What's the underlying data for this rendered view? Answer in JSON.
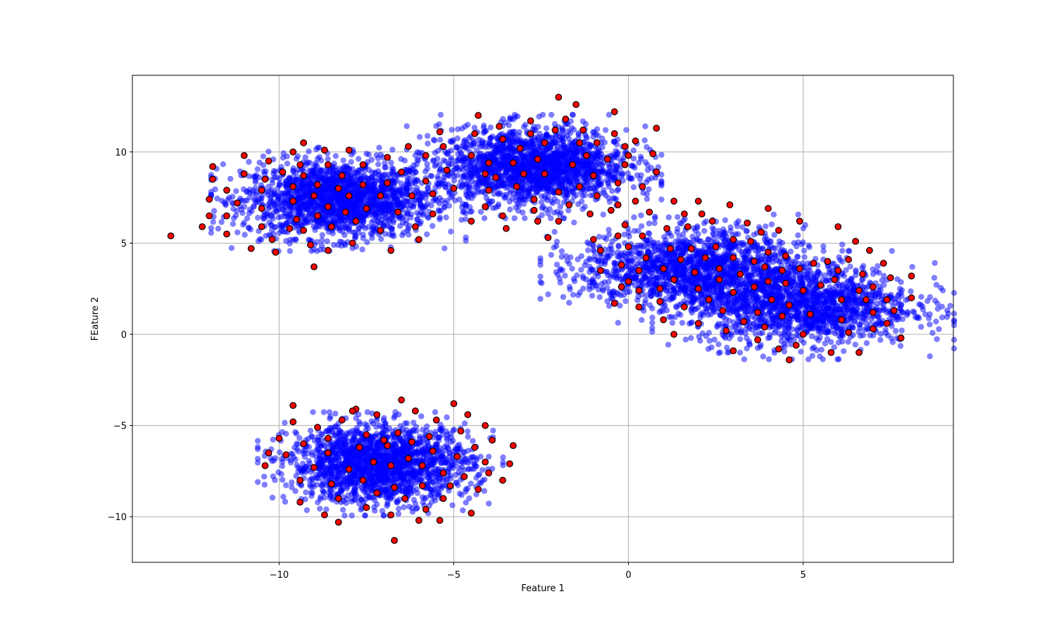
{
  "chart_data": {
    "type": "scatter",
    "title": "",
    "xlabel": "Feature 1",
    "ylabel": "FEature 2",
    "xlim": [
      -14.2,
      9.3
    ],
    "ylim": [
      -12.5,
      14.2
    ],
    "xticks": [
      -10,
      -5,
      0,
      5
    ],
    "xtick_labels": [
      "−10",
      "−5",
      "0",
      "5"
    ],
    "yticks": [
      -10,
      -5,
      0,
      5,
      10
    ],
    "ytick_labels": [
      "−10",
      "−5",
      "0",
      "5",
      "10"
    ],
    "grid": true,
    "legend": "none",
    "colors": {
      "dense": "#0000ff",
      "sparse_fill": "#ff0000",
      "sparse_edge": "#000000"
    },
    "series": [
      {
        "kind": "dense-clusters",
        "color": "#0000ff",
        "clusters": [
          {
            "center": [
              -8.3,
              7.4
            ],
            "spread": [
              1.35,
              1.05
            ],
            "count": 1800
          },
          {
            "center": [
              -2.7,
              9.2
            ],
            "spread": [
              1.35,
              1.05
            ],
            "count": 1800
          },
          {
            "center": [
              -7.1,
              -7.1
            ],
            "spread": [
              1.3,
              1.05
            ],
            "count": 1800
          },
          {
            "center": [
              1.8,
              3.6
            ],
            "spread": [
              1.6,
              1.1
            ],
            "count": 1500
          },
          {
            "center": [
              5.0,
              1.6
            ],
            "spread": [
              1.6,
              1.1
            ],
            "count": 1500
          }
        ]
      },
      {
        "kind": "highlighted",
        "color": "#ff0000",
        "points": [
          [
            -13.1,
            5.4
          ],
          [
            -12.2,
            5.9
          ],
          [
            -12.0,
            6.5
          ],
          [
            -12.0,
            7.4
          ],
          [
            -11.9,
            8.5
          ],
          [
            -11.9,
            9.2
          ],
          [
            -11.5,
            7.9
          ],
          [
            -11.5,
            6.5
          ],
          [
            -11.5,
            5.5
          ],
          [
            -11.2,
            7.2
          ],
          [
            -11.0,
            9.8
          ],
          [
            -11.0,
            8.8
          ],
          [
            -10.8,
            4.7
          ],
          [
            -10.5,
            7.9
          ],
          [
            -10.5,
            6.9
          ],
          [
            -10.5,
            5.9
          ],
          [
            -10.4,
            8.5
          ],
          [
            -10.3,
            9.5
          ],
          [
            -10.2,
            5.2
          ],
          [
            -10.1,
            4.5
          ],
          [
            -9.9,
            8.9
          ],
          [
            -9.7,
            5.8
          ],
          [
            -9.6,
            10.0
          ],
          [
            -9.6,
            8.1
          ],
          [
            -9.6,
            7.3
          ],
          [
            -9.5,
            6.3
          ],
          [
            -9.4,
            9.3
          ],
          [
            -9.3,
            10.5
          ],
          [
            -9.3,
            8.7
          ],
          [
            -9.3,
            5.7
          ],
          [
            -9.1,
            4.9
          ],
          [
            -9.0,
            7.6
          ],
          [
            -9.0,
            3.7
          ],
          [
            -8.9,
            8.2
          ],
          [
            -8.9,
            6.5
          ],
          [
            -8.7,
            10.1
          ],
          [
            -8.6,
            9.3
          ],
          [
            -8.6,
            7.0
          ],
          [
            -8.6,
            4.6
          ],
          [
            -8.5,
            5.9
          ],
          [
            -8.3,
            8.0
          ],
          [
            -8.2,
            8.7
          ],
          [
            -8.1,
            6.7
          ],
          [
            -8.0,
            10.1
          ],
          [
            -8.0,
            7.6
          ],
          [
            -7.9,
            5.0
          ],
          [
            -7.8,
            6.2
          ],
          [
            -7.6,
            9.3
          ],
          [
            -7.6,
            8.2
          ],
          [
            -7.5,
            6.9
          ],
          [
            -7.1,
            5.7
          ],
          [
            -7.1,
            7.6
          ],
          [
            -6.9,
            9.7
          ],
          [
            -6.9,
            8.3
          ],
          [
            -6.8,
            4.6
          ],
          [
            -6.6,
            6.7
          ],
          [
            -6.5,
            8.9
          ],
          [
            -6.3,
            10.3
          ],
          [
            -6.2,
            7.6
          ],
          [
            -6.1,
            5.9
          ],
          [
            -6.0,
            5.2
          ],
          [
            -5.8,
            9.8
          ],
          [
            -5.8,
            8.4
          ],
          [
            -5.6,
            7.7
          ],
          [
            -5.6,
            6.6
          ],
          [
            -5.4,
            11.1
          ],
          [
            -5.3,
            10.3
          ],
          [
            -5.2,
            9.0
          ],
          [
            -5.0,
            8.0
          ],
          [
            -4.5,
            9.8
          ],
          [
            -4.5,
            6.2
          ],
          [
            -4.4,
            11.0
          ],
          [
            -4.3,
            12.0
          ],
          [
            -4.1,
            8.8
          ],
          [
            -4.1,
            7.0
          ],
          [
            -4.0,
            9.4
          ],
          [
            -4.0,
            7.9
          ],
          [
            -3.8,
            8.6
          ],
          [
            -3.7,
            11.4
          ],
          [
            -3.6,
            10.7
          ],
          [
            -3.6,
            6.5
          ],
          [
            -3.5,
            5.8
          ],
          [
            -3.3,
            9.4
          ],
          [
            -3.2,
            8.1
          ],
          [
            -3.1,
            10.2
          ],
          [
            -3.0,
            8.8
          ],
          [
            -2.8,
            11.0
          ],
          [
            -2.8,
            11.7
          ],
          [
            -2.7,
            7.4
          ],
          [
            -2.7,
            6.8
          ],
          [
            -2.6,
            6.2
          ],
          [
            -2.6,
            9.6
          ],
          [
            -2.4,
            10.5
          ],
          [
            -2.4,
            8.8
          ],
          [
            -2.3,
            5.3
          ],
          [
            -2.1,
            11.2
          ],
          [
            -2.0,
            13.0
          ],
          [
            -2.0,
            7.8
          ],
          [
            -2.0,
            6.2
          ],
          [
            -1.8,
            11.8
          ],
          [
            -1.7,
            7.1
          ],
          [
            -1.6,
            9.3
          ],
          [
            -1.5,
            12.6
          ],
          [
            -1.4,
            10.5
          ],
          [
            -1.4,
            8.1
          ],
          [
            -1.3,
            11.2
          ],
          [
            -1.2,
            9.8
          ],
          [
            -1.1,
            6.6
          ],
          [
            -1.0,
            8.7
          ],
          [
            -1.0,
            5.2
          ],
          [
            -0.9,
            10.5
          ],
          [
            -0.9,
            7.6
          ],
          [
            -0.8,
            4.6
          ],
          [
            -0.8,
            3.5
          ],
          [
            -0.6,
            9.6
          ],
          [
            -0.5,
            6.8
          ],
          [
            -0.4,
            12.2
          ],
          [
            -0.4,
            11.0
          ],
          [
            -0.4,
            1.7
          ],
          [
            -0.3,
            8.3
          ],
          [
            -0.3,
            7.1
          ],
          [
            -0.3,
            5.4
          ],
          [
            -0.2,
            3.8
          ],
          [
            -0.2,
            2.6
          ],
          [
            -0.1,
            10.3
          ],
          [
            -0.1,
            9.3
          ],
          [
            -0.1,
            6.0
          ],
          [
            0.0,
            9.8
          ],
          [
            0.0,
            4.8
          ],
          [
            0.0,
            2.9
          ],
          [
            0.2,
            7.3
          ],
          [
            0.2,
            10.6
          ],
          [
            0.3,
            3.5
          ],
          [
            0.3,
            2.4
          ],
          [
            0.3,
            1.5
          ],
          [
            0.4,
            8.1
          ],
          [
            0.4,
            5.4
          ],
          [
            0.5,
            4.2
          ],
          [
            0.6,
            6.7
          ],
          [
            0.7,
            9.9
          ],
          [
            0.8,
            8.9
          ],
          [
            0.8,
            11.3
          ],
          [
            0.9,
            2.5
          ],
          [
            0.9,
            1.8
          ],
          [
            1.0,
            3.6
          ],
          [
            1.0,
            0.8
          ],
          [
            1.1,
            5.8
          ],
          [
            1.2,
            4.7
          ],
          [
            1.3,
            7.3
          ],
          [
            1.3,
            3.0
          ],
          [
            1.3,
            0.0
          ],
          [
            1.5,
            4.1
          ],
          [
            1.6,
            6.6
          ],
          [
            1.6,
            1.5
          ],
          [
            1.7,
            5.9
          ],
          [
            1.8,
            4.7
          ],
          [
            1.9,
            3.4
          ],
          [
            2.0,
            7.3
          ],
          [
            2.0,
            2.5
          ],
          [
            2.0,
            0.6
          ],
          [
            2.1,
            6.6
          ],
          [
            2.2,
            4.2
          ],
          [
            2.3,
            1.9
          ],
          [
            2.4,
            6.2
          ],
          [
            2.5,
            4.8
          ],
          [
            2.6,
            3.6
          ],
          [
            2.6,
            3.0
          ],
          [
            2.7,
            1.3
          ],
          [
            2.8,
            0.2
          ],
          [
            2.9,
            7.1
          ],
          [
            3.0,
            5.2
          ],
          [
            3.0,
            4.2
          ],
          [
            3.0,
            2.3
          ],
          [
            3.0,
            -0.9
          ],
          [
            3.2,
            3.3
          ],
          [
            3.3,
            0.7
          ],
          [
            3.4,
            6.1
          ],
          [
            3.5,
            5.1
          ],
          [
            3.6,
            4.0
          ],
          [
            3.6,
            2.6
          ],
          [
            3.7,
            1.2
          ],
          [
            3.7,
            -0.3
          ],
          [
            3.8,
            5.6
          ],
          [
            3.9,
            3.7
          ],
          [
            3.9,
            0.4
          ],
          [
            4.0,
            6.9
          ],
          [
            4.0,
            4.5
          ],
          [
            4.0,
            2.9
          ],
          [
            4.1,
            1.9
          ],
          [
            4.3,
            5.7
          ],
          [
            4.3,
            -0.8
          ],
          [
            4.4,
            3.5
          ],
          [
            4.4,
            1.0
          ],
          [
            4.5,
            4.3
          ],
          [
            4.5,
            2.8
          ],
          [
            4.6,
            1.6
          ],
          [
            4.6,
            -1.4
          ],
          [
            4.8,
            -0.6
          ],
          [
            4.9,
            6.2
          ],
          [
            4.9,
            3.6
          ],
          [
            5.0,
            2.4
          ],
          [
            5.0,
            0.0
          ],
          [
            5.2,
            1.1
          ],
          [
            5.3,
            3.9
          ],
          [
            5.5,
            2.7
          ],
          [
            5.7,
            4.0
          ],
          [
            5.8,
            -1.0
          ],
          [
            5.9,
            3.0
          ],
          [
            6.0,
            5.9
          ],
          [
            6.0,
            3.5
          ],
          [
            6.1,
            1.9
          ],
          [
            6.1,
            0.8
          ],
          [
            6.3,
            0.1
          ],
          [
            6.3,
            4.1
          ],
          [
            6.5,
            5.1
          ],
          [
            6.6,
            2.4
          ],
          [
            6.6,
            -1.0
          ],
          [
            6.7,
            3.3
          ],
          [
            6.8,
            1.9
          ],
          [
            6.9,
            4.6
          ],
          [
            7.0,
            1.2
          ],
          [
            7.0,
            0.3
          ],
          [
            7.0,
            2.6
          ],
          [
            7.3,
            3.9
          ],
          [
            7.4,
            1.9
          ],
          [
            7.4,
            0.6
          ],
          [
            7.5,
            3.1
          ],
          [
            7.6,
            1.3
          ],
          [
            7.8,
            -0.2
          ],
          [
            8.1,
            3.2
          ],
          [
            8.1,
            2.0
          ],
          [
            -10.3,
            -6.5
          ],
          [
            -10.4,
            -7.2
          ],
          [
            -10.0,
            -5.7
          ],
          [
            -9.6,
            -3.9
          ],
          [
            -9.6,
            -4.8
          ],
          [
            -9.4,
            -8.0
          ],
          [
            -9.4,
            -9.2
          ],
          [
            -9.3,
            -6.0
          ],
          [
            -9.0,
            -7.3
          ],
          [
            -8.9,
            -5.1
          ],
          [
            -8.7,
            -9.9
          ],
          [
            -8.6,
            -6.5
          ],
          [
            -8.6,
            -5.7
          ],
          [
            -8.5,
            -8.2
          ],
          [
            -8.3,
            -10.3
          ],
          [
            -8.3,
            -9.0
          ],
          [
            -8.2,
            -4.7
          ],
          [
            -8.0,
            -7.4
          ],
          [
            -7.8,
            -4.1
          ],
          [
            -7.7,
            -6.2
          ],
          [
            -7.6,
            -8.0
          ],
          [
            -7.5,
            -5.5
          ],
          [
            -7.5,
            -9.5
          ],
          [
            -7.3,
            -7.0
          ],
          [
            -7.2,
            -4.4
          ],
          [
            -7.2,
            -8.7
          ],
          [
            -7.0,
            -5.8
          ],
          [
            -6.9,
            -6.1
          ],
          [
            -6.8,
            -7.2
          ],
          [
            -6.8,
            -9.9
          ],
          [
            -6.7,
            -8.4
          ],
          [
            -6.7,
            -11.3
          ],
          [
            -6.6,
            -5.4
          ],
          [
            -6.5,
            -3.6
          ],
          [
            -6.4,
            -9.0
          ],
          [
            -6.3,
            -6.8
          ],
          [
            -6.2,
            -5.9
          ],
          [
            -6.1,
            -4.2
          ],
          [
            -6.0,
            -10.2
          ],
          [
            -5.9,
            -8.3
          ],
          [
            -5.9,
            -7.2
          ],
          [
            -5.8,
            -9.6
          ],
          [
            -5.7,
            -5.6
          ],
          [
            -5.6,
            -6.4
          ],
          [
            -5.5,
            -4.7
          ],
          [
            -5.4,
            -10.2
          ],
          [
            -5.3,
            -7.6
          ],
          [
            -5.3,
            -9.0
          ],
          [
            -5.1,
            -8.3
          ],
          [
            -5.0,
            -3.8
          ],
          [
            -4.9,
            -6.7
          ],
          [
            -4.8,
            -5.3
          ],
          [
            -4.7,
            -7.8
          ],
          [
            -4.6,
            -4.4
          ],
          [
            -4.5,
            -9.8
          ],
          [
            -4.4,
            -6.2
          ],
          [
            -4.3,
            -8.5
          ],
          [
            -4.1,
            -7.0
          ],
          [
            -4.1,
            -5.0
          ],
          [
            -4.0,
            -7.6
          ],
          [
            -3.9,
            -5.8
          ],
          [
            -3.6,
            -8.0
          ],
          [
            -3.4,
            -7.1
          ],
          [
            -3.3,
            -6.1
          ],
          [
            -9.8,
            -6.6
          ],
          [
            -7.9,
            -4.2
          ]
        ]
      }
    ]
  }
}
